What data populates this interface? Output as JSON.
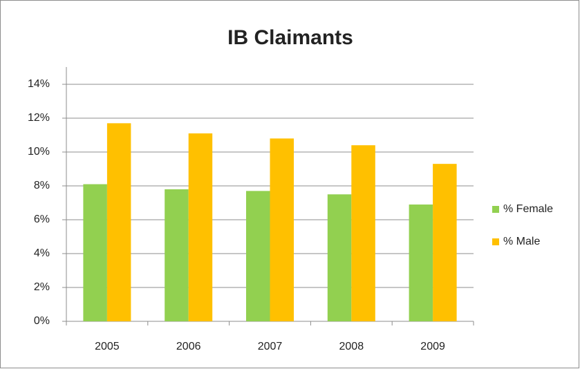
{
  "chart_data": {
    "type": "bar",
    "title": "IB Claimants",
    "categories": [
      "2005",
      "2006",
      "2007",
      "2008",
      "2009"
    ],
    "series": [
      {
        "name": "% Female",
        "color": "#92d050",
        "values": [
          8.1,
          7.8,
          7.7,
          7.5,
          6.9
        ]
      },
      {
        "name": "% Male",
        "color": "#ffc000",
        "values": [
          11.7,
          11.1,
          10.8,
          10.4,
          9.3
        ]
      }
    ],
    "ylim": [
      0,
      14
    ],
    "yticks": [
      {
        "value": 0,
        "label": "0%"
      },
      {
        "value": 2,
        "label": "2%"
      },
      {
        "value": 4,
        "label": "4%"
      },
      {
        "value": 6,
        "label": "6%"
      },
      {
        "value": 8,
        "label": "8%"
      },
      {
        "value": 10,
        "label": "10%"
      },
      {
        "value": 12,
        "label": "12%"
      },
      {
        "value": 14,
        "label": "14%"
      }
    ],
    "grid": true,
    "legend": "right"
  }
}
